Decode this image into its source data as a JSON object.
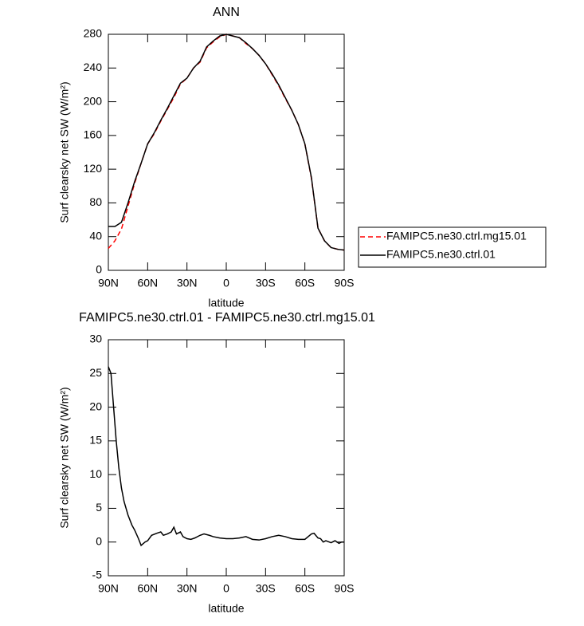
{
  "chart_data": [
    {
      "type": "line",
      "title": "ANN",
      "xlabel": "latitude",
      "ylabel": "Surf clearsky net SW (W/m²)",
      "x": [
        90,
        85,
        80,
        75,
        70,
        65,
        60,
        55,
        50,
        45,
        40,
        35,
        30,
        25,
        20,
        15,
        10,
        5,
        0,
        -5,
        -10,
        -15,
        -20,
        -25,
        -30,
        -35,
        -40,
        -45,
        -50,
        -55,
        -60,
        -65,
        -70,
        -75,
        -80,
        -85,
        -90
      ],
      "series": [
        {
          "name": "FAMIPC5.ne30.ctrl.mg15.01",
          "color": "#ff0000",
          "dash": true,
          "values": [
            26,
            35,
            49,
            76,
            103,
            127,
            150,
            162,
            177,
            191,
            205,
            221,
            228,
            240,
            247,
            264,
            271,
            277,
            280,
            278,
            276,
            269,
            263,
            255,
            245,
            232,
            219,
            204,
            190,
            173,
            150,
            109,
            50,
            35,
            27,
            25,
            24
          ]
        },
        {
          "name": "FAMIPC5.ne30.ctrl.01",
          "color": "#000000",
          "dash": false,
          "values": [
            52,
            52,
            57,
            80,
            105,
            127,
            150,
            163,
            178,
            192,
            207,
            222,
            228,
            240,
            248,
            265,
            272,
            278,
            280,
            278,
            276,
            270,
            263,
            255,
            245,
            233,
            220,
            205,
            190,
            173,
            150,
            110,
            50,
            35,
            27,
            25,
            24
          ]
        }
      ],
      "xlim": [
        90,
        -90
      ],
      "xticks": [
        {
          "value": 90,
          "label": "90N"
        },
        {
          "value": 60,
          "label": "60N"
        },
        {
          "value": 30,
          "label": "30N"
        },
        0,
        {
          "value": -30,
          "label": "30S"
        },
        {
          "value": -60,
          "label": "60S"
        },
        {
          "value": -90,
          "label": "90S"
        }
      ],
      "ylim": [
        0,
        280
      ],
      "yticks": [
        0,
        40,
        80,
        120,
        160,
        200,
        240,
        280
      ],
      "legend": "outside-right"
    },
    {
      "type": "line",
      "title": "FAMIPC5.ne30.ctrl.01 - FAMIPC5.ne30.ctrl.mg15.01",
      "xlabel": "latitude",
      "ylabel": "Surf clearsky net SW (W/m²)",
      "x": [
        90,
        88,
        86,
        84,
        82,
        80,
        78,
        75,
        72,
        70,
        67,
        65,
        62,
        60,
        57,
        53,
        50,
        48,
        45,
        42,
        40,
        38,
        35,
        33,
        30,
        27,
        24,
        20,
        17,
        13,
        10,
        5,
        0,
        -5,
        -10,
        -15,
        -20,
        -25,
        -30,
        -35,
        -40,
        -45,
        -50,
        -55,
        -60,
        -65,
        -67,
        -70,
        -72,
        -74,
        -76,
        -80,
        -83,
        -86,
        -88,
        -90
      ],
      "series": [
        {
          "color": "#000000",
          "dash": false,
          "values": [
            26,
            25,
            20,
            15,
            11,
            8,
            6,
            4,
            2.5,
            1.8,
            0.5,
            -0.5,
            0,
            0.2,
            1,
            1.3,
            1.5,
            1,
            1.2,
            1.5,
            2.2,
            1.2,
            1.5,
            0.8,
            0.5,
            0.4,
            0.6,
            1,
            1.2,
            1,
            0.8,
            0.6,
            0.5,
            0.5,
            0.6,
            0.8,
            0.4,
            0.3,
            0.5,
            0.8,
            1,
            0.8,
            0.5,
            0.4,
            0.4,
            1.2,
            1.3,
            0.6,
            0.5,
            0,
            0.2,
            -0.1,
            0.2,
            -0.2,
            0,
            0
          ]
        }
      ],
      "xlim": [
        90,
        -90
      ],
      "xticks": [
        {
          "value": 90,
          "label": "90N"
        },
        {
          "value": 60,
          "label": "60N"
        },
        {
          "value": 30,
          "label": "30N"
        },
        0,
        {
          "value": -30,
          "label": "30S"
        },
        {
          "value": -60,
          "label": "60S"
        },
        {
          "value": -90,
          "label": "90S"
        }
      ],
      "ylim": [
        -5,
        30
      ],
      "yticks": [
        -5,
        0,
        5,
        10,
        15,
        20,
        25,
        30
      ]
    }
  ]
}
